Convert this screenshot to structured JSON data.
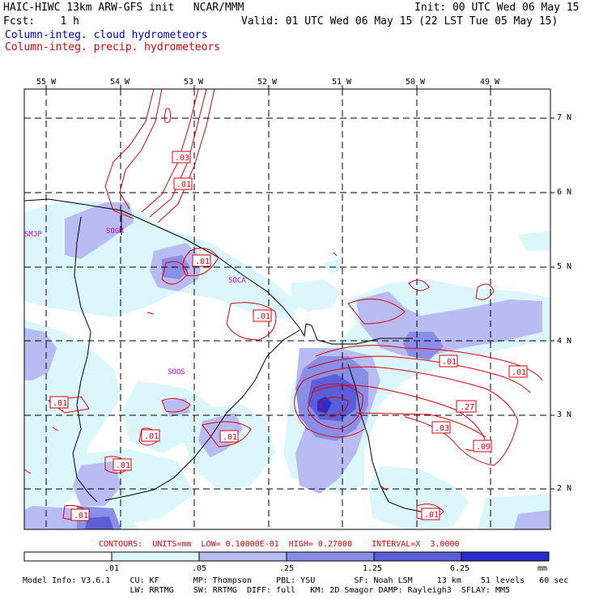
{
  "header": {
    "line1_left": "HAIC-HIWC 13km ARW-GFS init   NCAR/MMM",
    "line1_right": "Init: 00 UTC Wed 06 May 15",
    "line2_left": "Fcst:    1 h",
    "line2_right": "Valid: 01 UTC Wed 06 May 15 (22 LST Tue 05 May 15)",
    "field1": "Column-integ. cloud hydrometeors",
    "field2": "Column-integ. precip. hydrometeors"
  },
  "colors": {
    "field1": "#0000cc",
    "field2": "#dd0000",
    "shade_1": "#dcf7fb",
    "shade_2": "#b8bcf2",
    "shade_3": "#8a8ee6",
    "shade_4": "#5a5ed9",
    "shade_5": "#2a2cd0",
    "contour": "#e0000a",
    "border": "#000000"
  },
  "map": {
    "lon_labels": [
      "55 W",
      "54 W",
      "53 W",
      "52 W",
      "51 W",
      "50 W",
      "49 W"
    ],
    "lat_labels": [
      "7 N",
      "6 N",
      "5 N",
      "4 N",
      "3 N",
      "2 N"
    ],
    "stations": [
      "SMJP",
      "SOGM",
      "SOCA",
      "SOOS"
    ],
    "contour_labels": [
      ".03",
      ".01",
      ".01",
      ".01",
      ".01",
      ".01",
      ".01",
      ".27",
      ".03",
      ".09",
      ".01",
      ".01",
      ".01",
      ".01",
      ".01"
    ]
  },
  "colorbar": {
    "labels": [
      ".01",
      ".05",
      ".25",
      "1.25",
      "6.25"
    ],
    "units": "mm"
  },
  "contour_info": "CONTOURS:  UNITS=mm  LOW= 0.10000E-01  HIGH= 0.27000    INTERVAL=X  3.0000",
  "footer": {
    "line1": "Model Info: V3.6.1    CU: KF       MP: Thompson     PBL: YSU        SF: Noah LSM     13 km    51 levels   60 sec",
    "line2": "                      LW: RRTMG    SW: RRTMG  DIFF: full   KM: 2D Smagor DAMP: Rayleigh3  SFLAY: MM5"
  }
}
